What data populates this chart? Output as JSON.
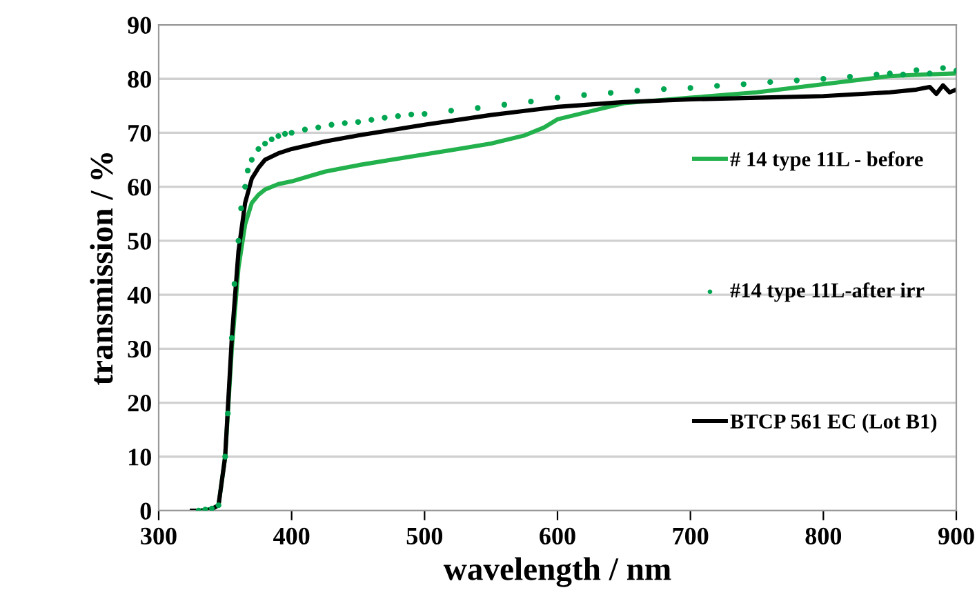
{
  "chart_data": {
    "type": "line",
    "xlabel": "wavelength / nm",
    "ylabel": "transmission / %",
    "xlim": [
      300,
      900
    ],
    "xticks": [
      300,
      400,
      500,
      600,
      700,
      800,
      900
    ],
    "ylim": [
      0,
      90
    ],
    "yticks": [
      0,
      10,
      20,
      30,
      40,
      50,
      60,
      70,
      80,
      90
    ],
    "grid": "y",
    "legend": "right",
    "series": [
      {
        "name": "# 14 type 11L - before",
        "color": "#22b14c",
        "x": [
          330,
          340,
          345,
          350,
          355,
          360,
          365,
          370,
          375,
          380,
          390,
          400,
          425,
          450,
          475,
          500,
          525,
          550,
          575,
          590,
          600,
          625,
          650,
          675,
          700,
          750,
          800,
          850,
          875,
          900
        ],
        "values": [
          0,
          0.3,
          1,
          10,
          30,
          45,
          53,
          57,
          58.5,
          59.5,
          60.5,
          61,
          62.8,
          64,
          65,
          66,
          67,
          68,
          69.5,
          71,
          72.5,
          74,
          75.5,
          76,
          76.5,
          77.5,
          79,
          80.5,
          80.8,
          81
        ]
      },
      {
        "name": "#14 type 11L-after irr",
        "color": "#00a651",
        "type": "scatter",
        "marker": "circle",
        "x": [
          330,
          335,
          340,
          345,
          350,
          352,
          355,
          357,
          360,
          362,
          365,
          367,
          370,
          375,
          380,
          385,
          390,
          395,
          400,
          410,
          420,
          430,
          440,
          450,
          460,
          470,
          480,
          490,
          500,
          520,
          540,
          560,
          580,
          600,
          620,
          640,
          660,
          680,
          700,
          720,
          740,
          760,
          780,
          800,
          820,
          840,
          850,
          860,
          870,
          880,
          890,
          900
        ],
        "values": [
          0,
          0.2,
          0.4,
          1,
          10,
          18,
          32,
          42,
          50,
          56,
          60,
          63,
          65,
          67,
          68,
          68.8,
          69.4,
          69.8,
          70,
          70.6,
          71,
          71.5,
          71.8,
          72,
          72.4,
          72.8,
          73.1,
          73.4,
          73.5,
          74.1,
          74.6,
          75.2,
          75.8,
          76.5,
          77,
          77.4,
          77.8,
          78.1,
          78.3,
          78.7,
          79,
          79.4,
          79.7,
          80,
          80.4,
          80.8,
          81,
          80.8,
          81.6,
          81,
          82,
          81.5
        ]
      },
      {
        "name": "BTCP 561 EC (Lot B1)",
        "color": "#000000",
        "x": [
          325,
          335,
          340,
          345,
          350,
          355,
          360,
          365,
          370,
          375,
          380,
          390,
          400,
          425,
          450,
          475,
          500,
          550,
          600,
          650,
          700,
          750,
          800,
          850,
          870,
          880,
          885,
          890,
          895,
          900
        ],
        "values": [
          0,
          0,
          0.3,
          1,
          10,
          32,
          48,
          57,
          61.5,
          63.5,
          65,
          66.2,
          67,
          68.4,
          69.5,
          70.5,
          71.5,
          73.3,
          74.8,
          75.7,
          76.2,
          76.5,
          76.8,
          77.5,
          78,
          78.5,
          77.2,
          78.8,
          77.5,
          78
        ]
      }
    ]
  }
}
